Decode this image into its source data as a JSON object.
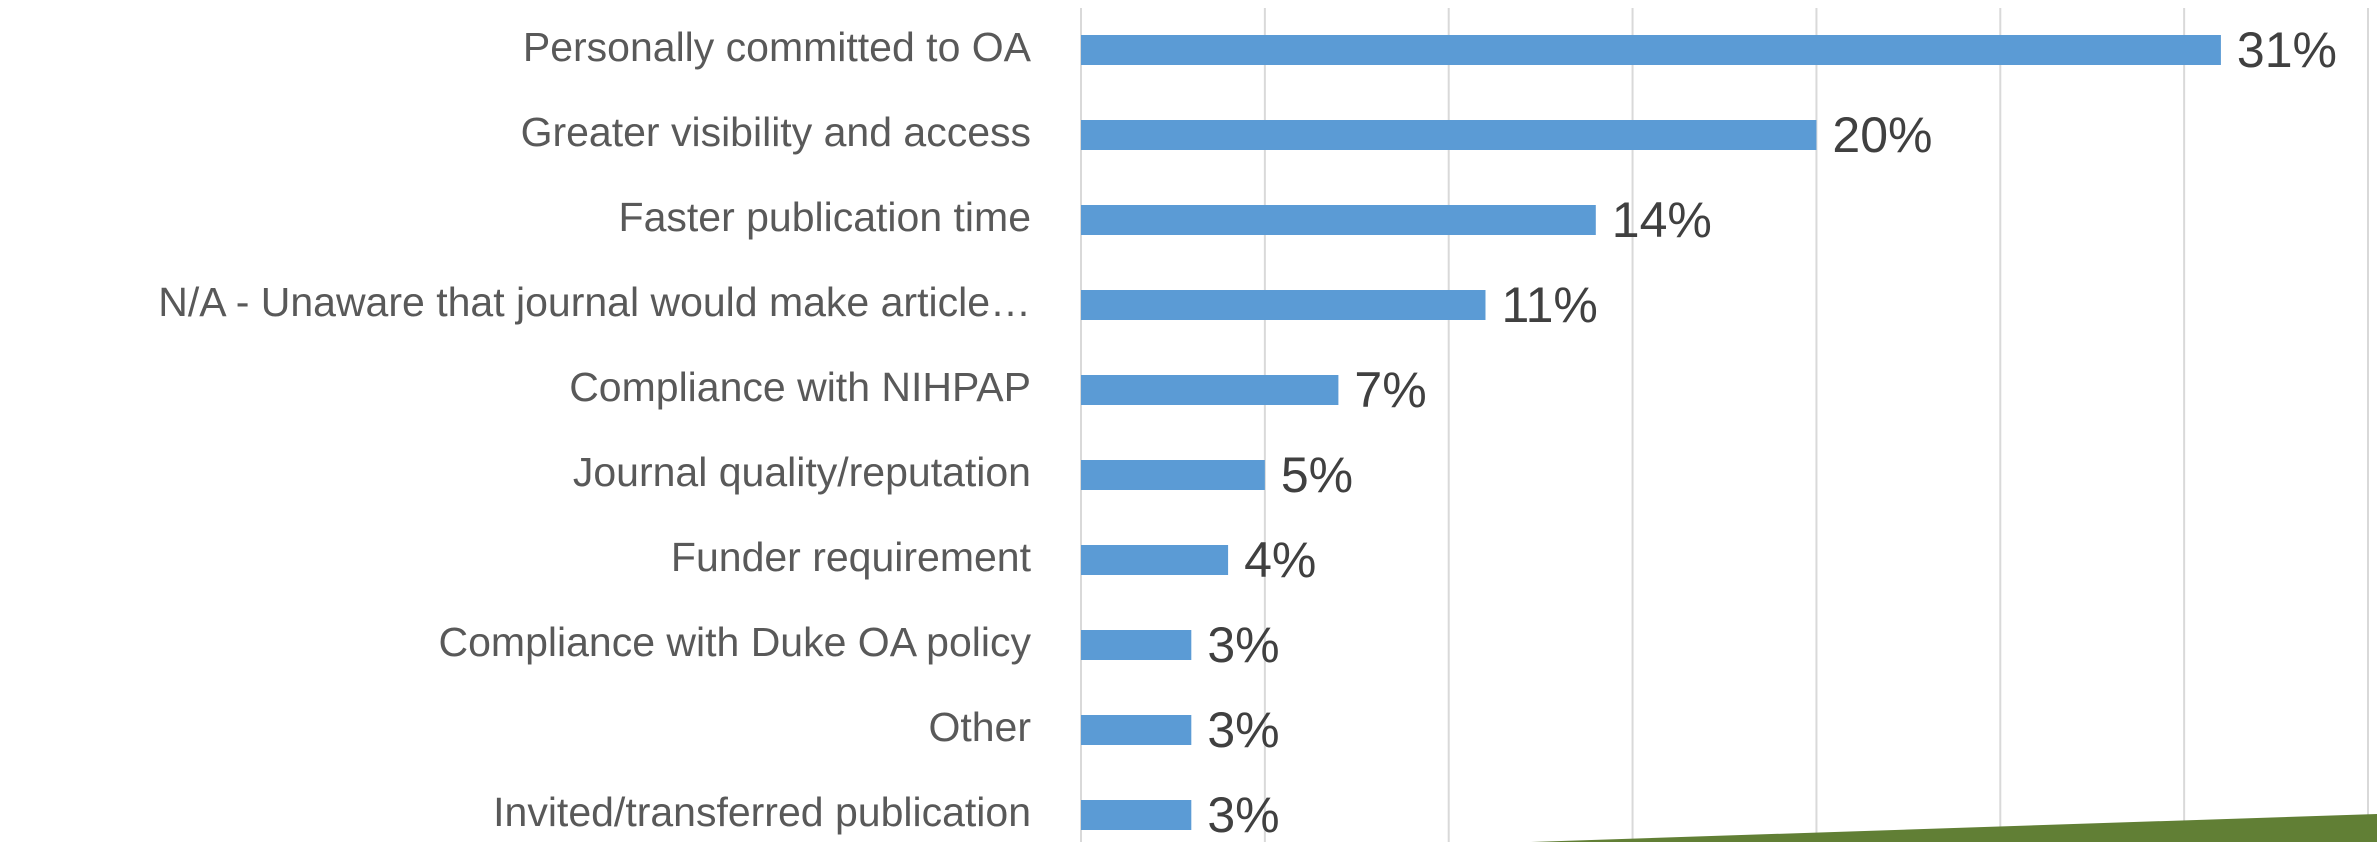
{
  "chart_data": {
    "type": "bar",
    "orientation": "horizontal",
    "categories": [
      "Personally committed to OA",
      "Greater visibility and access",
      "Faster publication time",
      "N/A - Unaware that journal would make article…",
      "Compliance with NIHPAP",
      "Journal quality/reputation",
      "Funder requirement",
      "Compliance with Duke OA policy",
      "Other",
      "Invited/transferred publication"
    ],
    "values": [
      31,
      20,
      14,
      11,
      7,
      5,
      4,
      3,
      3,
      3
    ],
    "value_labels": [
      "31%",
      "20%",
      "14%",
      "11%",
      "7%",
      "5%",
      "4%",
      "3%",
      "3%",
      "3%"
    ],
    "color": "#5b9bd5",
    "xlim": [
      0,
      35
    ],
    "xticks": [
      0,
      5,
      10,
      15,
      20,
      25,
      30,
      35
    ],
    "grid": true
  }
}
